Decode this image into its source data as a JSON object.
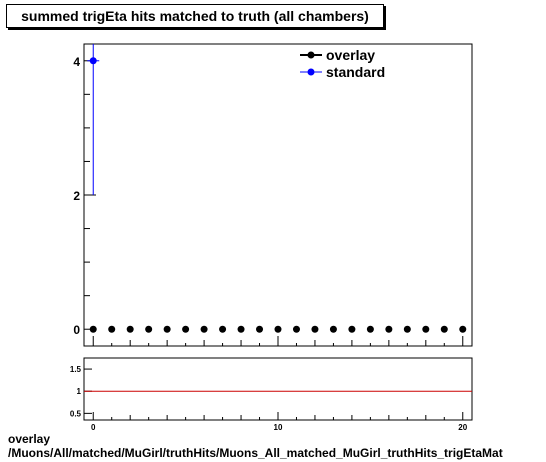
{
  "title": "summed trigEta hits matched to truth (all chambers)",
  "footer": {
    "line1": "overlay",
    "line2": "/Muons/All/matched/MuGirl/truthHits/Muons_All_matched_MuGirl_truthHits_trigEtaMat"
  },
  "colors": {
    "overlay": "#000000",
    "standard": "#0000ff",
    "ratio_line": "#cc0000"
  },
  "chart_data": [
    {
      "type": "scatter",
      "xlim": [
        -0.5,
        20.5
      ],
      "ylim": [
        -0.25,
        4.25
      ],
      "y_ticks": [
        0,
        2,
        4
      ],
      "legend": {
        "placement": "top-right"
      },
      "series": [
        {
          "name": "overlay",
          "x": [
            0,
            1,
            2,
            3,
            4,
            5,
            6,
            7,
            8,
            9,
            10,
            11,
            12,
            13,
            14,
            15,
            16,
            17,
            18,
            19,
            20
          ],
          "values": [
            0,
            0,
            0,
            0,
            0,
            0,
            0,
            0,
            0,
            0,
            0,
            0,
            0,
            0,
            0,
            0,
            0,
            0,
            0,
            0,
            0
          ]
        },
        {
          "name": "standard",
          "x": [
            0
          ],
          "values": [
            4
          ],
          "y_error": [
            2
          ]
        }
      ]
    },
    {
      "type": "line",
      "xlim": [
        -0.5,
        20.5
      ],
      "x_ticks": [
        0,
        10,
        20
      ],
      "ylim": [
        0.35,
        1.75
      ],
      "y_ticks": [
        0.5,
        1,
        1.5
      ],
      "series": [
        {
          "x": [
            -0.5,
            20.5
          ],
          "values": [
            1,
            1
          ]
        }
      ]
    }
  ]
}
